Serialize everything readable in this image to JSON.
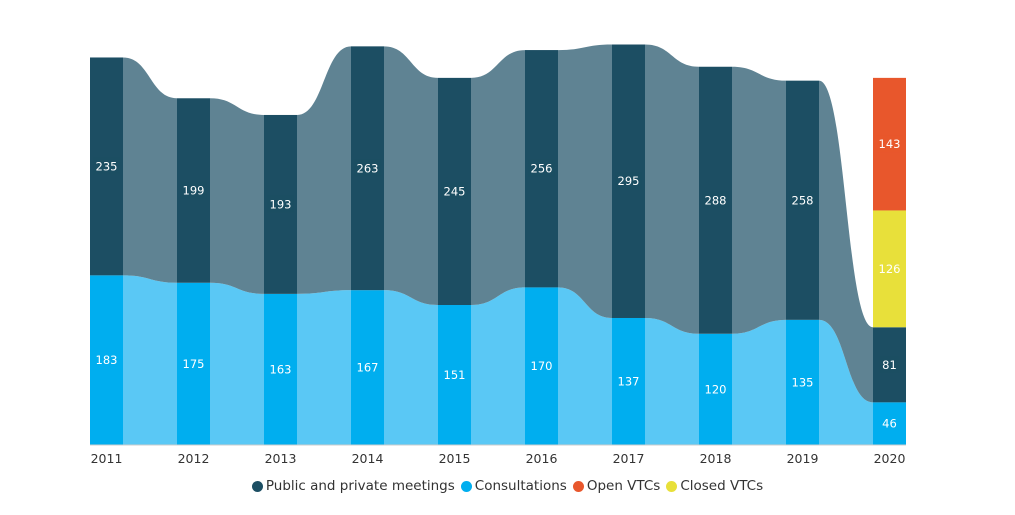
{
  "chart_data": {
    "type": "bar",
    "stacked": true,
    "categories": [
      "2011",
      "2012",
      "2013",
      "2014",
      "2015",
      "2016",
      "2017",
      "2018",
      "2019",
      "2020"
    ],
    "series": [
      {
        "name": "Consultations",
        "color": "#00aeef",
        "values": [
          183,
          175,
          163,
          167,
          151,
          170,
          137,
          120,
          135,
          46
        ]
      },
      {
        "name": "Public and private meetings",
        "color": "#1c4e63",
        "values": [
          235,
          199,
          193,
          263,
          245,
          256,
          295,
          288,
          258,
          81
        ]
      },
      {
        "name": "Closed VTCs",
        "color": "#e8e03a",
        "values": [
          null,
          null,
          null,
          null,
          null,
          null,
          null,
          null,
          null,
          126
        ]
      },
      {
        "name": "Open VTCs",
        "color": "#e8572c",
        "values": [
          null,
          null,
          null,
          null,
          null,
          null,
          null,
          null,
          null,
          143
        ]
      }
    ],
    "legend_order": [
      "Public and private meetings",
      "Consultations",
      "Open VTCs",
      "Closed VTCs"
    ],
    "flow_colors": {
      "Consultations": "#5ac8f5",
      "Public and private meetings": "#5f8393"
    },
    "legend_position": "bottom",
    "grid": false,
    "ylim": [
      0,
      480
    ]
  }
}
